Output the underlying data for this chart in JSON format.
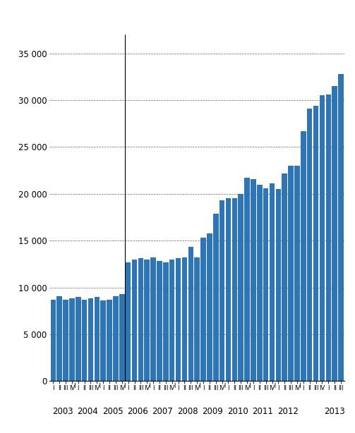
{
  "values": [
    8700,
    9100,
    8700,
    8800,
    9000,
    8700,
    8800,
    9000,
    8600,
    8700,
    9100,
    9300,
    12700,
    13000,
    13100,
    13000,
    13200,
    12800,
    12700,
    13000,
    13100,
    13200,
    14300,
    13200,
    15300,
    15800,
    17900,
    19300,
    19500,
    19500,
    20000,
    21700,
    21600,
    21000,
    20600,
    21100,
    20500,
    22200,
    23000,
    23000,
    26700,
    29100,
    29400,
    30500,
    30600,
    31500,
    32800
  ],
  "quarter_labels": [
    "I",
    "II",
    "III",
    "IV",
    "I",
    "II",
    "III",
    "IV",
    "I",
    "II",
    "III",
    "IV",
    "I",
    "II",
    "III",
    "IV",
    "I",
    "II",
    "III",
    "IV",
    "I",
    "II",
    "III",
    "IV",
    "I",
    "II",
    "III",
    "IV",
    "I",
    "II",
    "III",
    "IV",
    "I",
    "II",
    "III",
    "IV",
    "I",
    "II",
    "III",
    "IV",
    "I",
    "II",
    "III",
    "IV",
    "I",
    "II",
    "III"
  ],
  "year_labels": [
    "2003",
    "2004",
    "2005",
    "2006",
    "2007",
    "2008",
    "2009",
    "2010",
    "2011",
    "2012",
    "2013"
  ],
  "year_centers": [
    1.5,
    5.5,
    9.5,
    13.5,
    17.5,
    21.5,
    25.5,
    29.5,
    33.5,
    37.5,
    43.5
  ],
  "year_boundaries": [
    3.5,
    7.5,
    11.5,
    15.5,
    19.5,
    23.5,
    27.5,
    31.5,
    35.5,
    39.5
  ],
  "vline_x": 11.5,
  "bar_color": "#2E75B6",
  "ylim": [
    0,
    37000
  ],
  "yticks": [
    0,
    5000,
    10000,
    15000,
    20000,
    25000,
    30000,
    35000
  ],
  "ytick_labels": [
    "0",
    "5 000",
    "10 000",
    "15 000",
    "20 000",
    "25 000",
    "30 000",
    "35 000"
  ]
}
